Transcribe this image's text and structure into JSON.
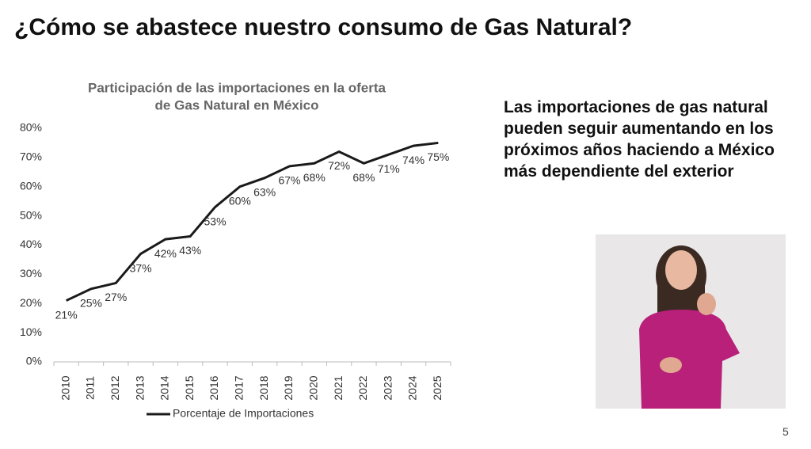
{
  "slide_title": "¿Cómo se abastece nuestro consumo de Gas Natural?",
  "body_text": "Las importaciones de gas natural pueden seguir aumentando en los próximos años haciendo a México más dependiente del exterior",
  "page_number": "5",
  "chart_data": {
    "type": "line",
    "title": [
      "Participación de las importaciones en la oferta",
      "de Gas Natural en  México"
    ],
    "categories": [
      "2010",
      "2011",
      "2012",
      "2013",
      "2014",
      "2015",
      "2016",
      "2017",
      "2018",
      "2019",
      "2020",
      "2021",
      "2022",
      "2023",
      "2024",
      "2025"
    ],
    "series": [
      {
        "name": "Porcentaje de Importaciones",
        "color": "#1a1a1a",
        "values": [
          21,
          25,
          27,
          37,
          42,
          43,
          53,
          60,
          63,
          67,
          68,
          72,
          68,
          71,
          74,
          75
        ],
        "value_labels": [
          "21%",
          "25%",
          "27%",
          "37%",
          "42%",
          "43%",
          "53%",
          "60%",
          "63%",
          "67%",
          "68%",
          "72%",
          "68%",
          "71%",
          "74%",
          "75%"
        ]
      }
    ],
    "ylim": [
      0,
      80
    ],
    "yticks": [
      {
        "value": 0,
        "label": "0%"
      },
      {
        "value": 10,
        "label": "10%"
      },
      {
        "value": 20,
        "label": "20%"
      },
      {
        "value": 30,
        "label": "30%"
      },
      {
        "value": 40,
        "label": "40%"
      },
      {
        "value": 50,
        "label": "50%"
      },
      {
        "value": 60,
        "label": "60%"
      },
      {
        "value": 70,
        "label": "70%"
      },
      {
        "value": 80,
        "label": "80%"
      }
    ],
    "grid": false,
    "legend": "bottom"
  }
}
